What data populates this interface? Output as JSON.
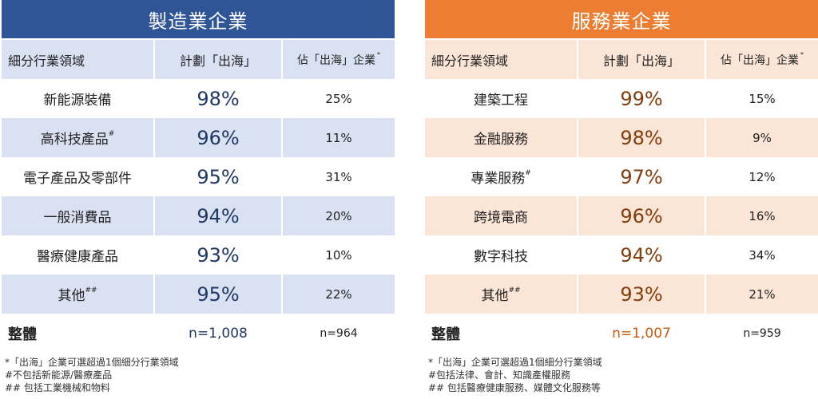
{
  "manufacturing": {
    "title": "製造業企業",
    "header": {
      "col1": "細分行業領域",
      "col2": "計劃「出海」",
      "col3": "佔「出海」企業",
      "col3_mark": "*"
    },
    "rows": [
      {
        "name": "新能源裝備",
        "mark": "",
        "plan": "98%",
        "share": "25%"
      },
      {
        "name": "高科技產品",
        "mark": "#",
        "plan": "96%",
        "share": "11%"
      },
      {
        "name": "電子產品及零部件",
        "mark": "",
        "plan": "95%",
        "share": "31%"
      },
      {
        "name": "一般消費品",
        "mark": "",
        "plan": "94%",
        "share": "20%"
      },
      {
        "name": "醫療健康產品",
        "mark": "",
        "plan": "93%",
        "share": "10%"
      },
      {
        "name": "其他",
        "mark": "##",
        "plan": "95%",
        "share": "22%"
      }
    ],
    "total": {
      "label": "整體",
      "n_plan": "n=1,008",
      "n_share": "n=964"
    },
    "notes": [
      "*「出海」企業可選超過1個細分行業領域",
      "#不包括新能源/醫療產品",
      "## 包括工業機械和物料"
    ]
  },
  "services": {
    "title": "服務業企業",
    "header": {
      "col1": "細分行業領域",
      "col2": "計劃「出海」",
      "col3": "佔「出海」企業",
      "col3_mark": "*"
    },
    "rows": [
      {
        "name": "建築工程",
        "mark": "",
        "plan": "99%",
        "share": "15%"
      },
      {
        "name": "金融服務",
        "mark": "",
        "plan": "98%",
        "share": "9%"
      },
      {
        "name": "專業服務",
        "mark": "#",
        "plan": "97%",
        "share": "12%"
      },
      {
        "name": "跨境電商",
        "mark": "",
        "plan": "96%",
        "share": "16%"
      },
      {
        "name": "數字科技",
        "mark": "",
        "plan": "94%",
        "share": "34%"
      },
      {
        "name": "其他",
        "mark": "##",
        "plan": "93%",
        "share": "21%"
      }
    ],
    "total": {
      "label": "整體",
      "n_plan": "n=1,007",
      "n_share": "n=959"
    },
    "notes": [
      "*「出海」企業可選超過1個細分行業領域",
      "#包括法律、會計、知識產權服務",
      "## 包括醫療健康服務、媒體文化服務等"
    ]
  }
}
